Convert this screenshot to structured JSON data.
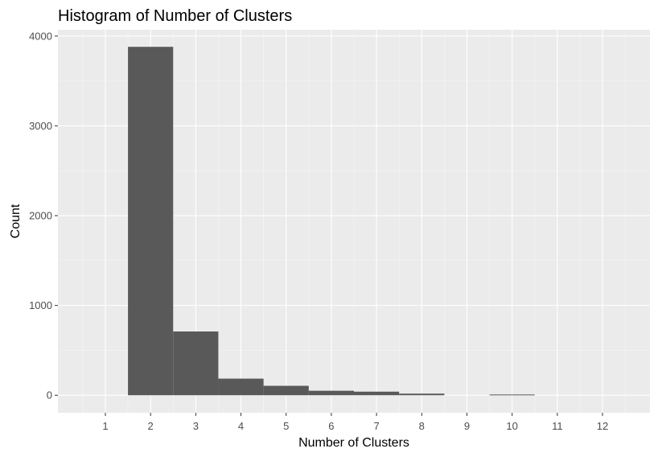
{
  "chart_data": {
    "type": "bar",
    "title": "Histogram of Number of Clusters",
    "xlabel": "Number of Clusters",
    "ylabel": "Count",
    "categories": [
      1,
      2,
      3,
      4,
      5,
      6,
      7,
      8,
      9,
      10,
      11,
      12
    ],
    "values": [
      0,
      3880,
      710,
      185,
      105,
      50,
      40,
      18,
      0,
      8,
      0,
      0
    ],
    "xlim": [
      -0.05,
      13.05
    ],
    "ylim": [
      -195,
      4070
    ],
    "y_ticks": [
      0,
      1000,
      2000,
      3000,
      4000
    ],
    "y_minor_ticks": [
      500,
      1500,
      2500,
      3500
    ],
    "x_minor_ticks": [
      0.5,
      1.5,
      2.5,
      3.5,
      4.5,
      5.5,
      6.5,
      7.5,
      8.5,
      9.5,
      10.5,
      11.5,
      12.5
    ],
    "bar_width": 1,
    "grid": true,
    "legend": "none"
  },
  "colors": {
    "panel_background": "#ebebeb",
    "grid_major": "#ffffff",
    "grid_minor": "#f5f5f5",
    "bar_fill": "#595959",
    "tick_text": "#4d4d4d",
    "tick_mark": "#333333",
    "text": "#000000"
  }
}
